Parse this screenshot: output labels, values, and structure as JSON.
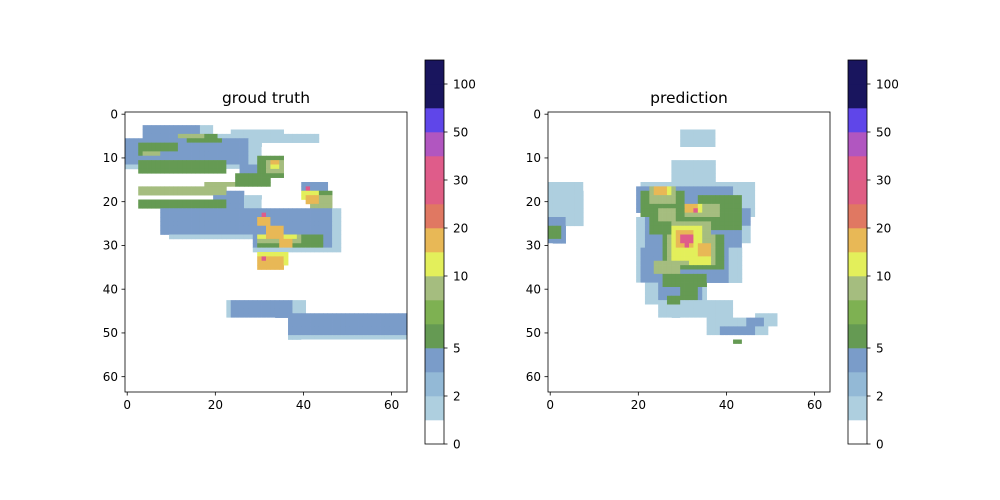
{
  "chart_data": [
    {
      "type": "heatmap",
      "title": "groud truth",
      "grid_size": [
        64,
        64
      ],
      "xlim": [
        -0.5,
        63.5
      ],
      "ylim": [
        63.5,
        -0.5
      ],
      "xticks": [
        0,
        20,
        40,
        60
      ],
      "yticks": [
        0,
        10,
        20,
        30,
        40,
        50,
        60
      ],
      "grid": false,
      "cells": {
        "0.5": [
          [
            4,
            3,
            24,
            3
          ],
          [
            4,
            3,
            16,
            6
          ],
          [
            24,
            44,
            10,
            6
          ],
          [
            20,
            42,
            14,
            6
          ],
          [
            20,
            38,
            24,
            5
          ],
          [
            42,
            48,
            21,
            5
          ],
          [
            40,
            52,
            40,
            3
          ],
          [
            45,
            50,
            51,
            3
          ],
          [
            54,
            58,
            51,
            1
          ],
          [
            37,
            46,
            47,
            2
          ],
          [
            10,
            20,
            25,
            6
          ],
          [
            4,
            8,
            30,
            6
          ],
          [
            47,
            49,
            58,
            2
          ]
        ],
        "1.5": [
          [
            4,
            3,
            16,
            6
          ],
          [
            12,
            7,
            14,
            6
          ],
          [
            29,
            22,
            20,
            10
          ],
          [
            23,
            19,
            8,
            6
          ],
          [
            23,
            43,
            18,
            4
          ],
          [
            10,
            22,
            34,
            7
          ],
          [
            2,
            8,
            5,
            3
          ],
          [
            5,
            9,
            9,
            1
          ],
          [
            0,
            6,
            31,
            7
          ],
          [
            37,
            46,
            44,
            6
          ],
          [
            14,
            5,
            30,
            2
          ],
          [
            24,
            4,
            12,
            2
          ],
          [
            30,
            34,
            3,
            1
          ]
        ],
        "3.5": [
          [
            4,
            3,
            13,
            5
          ],
          [
            12,
            7,
            12,
            5
          ],
          [
            29,
            22,
            18,
            9
          ],
          [
            20,
            18,
            7,
            4
          ],
          [
            24,
            43,
            14,
            4
          ],
          [
            8,
            22,
            30,
            6
          ],
          [
            2,
            8,
            4,
            2
          ],
          [
            5,
            9,
            8,
            1
          ],
          [
            0,
            6,
            28,
            6
          ],
          [
            37,
            46,
            42,
            5
          ],
          [
            26,
            12,
            9,
            3
          ],
          [
            40,
            16,
            6,
            4
          ]
        ],
        "5.5": [
          [
            3,
            8,
            5,
            2
          ],
          [
            3,
            7,
            9,
            2
          ],
          [
            12,
            5,
            9,
            1
          ],
          [
            3,
            11,
            20,
            3
          ],
          [
            3,
            20,
            20,
            2
          ],
          [
            30,
            28,
            15,
            3
          ],
          [
            40,
            18,
            7,
            2
          ],
          [
            14,
            6,
            8,
            1
          ],
          [
            25,
            14,
            8,
            3
          ],
          [
            30,
            10,
            6,
            5
          ],
          [
            32,
            11,
            4,
            3
          ]
        ],
        "8": [
          [
            4,
            9,
            4,
            1
          ],
          [
            12,
            5,
            6,
            1
          ],
          [
            3,
            17,
            20,
            2
          ],
          [
            10,
            18,
            10,
            1
          ],
          [
            30,
            28,
            10,
            2
          ],
          [
            42,
            19,
            5,
            3
          ],
          [
            32,
            11,
            4,
            3
          ],
          [
            18,
            16,
            7,
            1
          ]
        ],
        "12": [
          [
            30,
            28,
            9,
            1
          ],
          [
            30,
            32,
            7,
            3
          ],
          [
            40,
            18,
            4,
            2
          ],
          [
            33,
            11,
            2,
            2
          ]
        ],
        "17": [
          [
            30,
            33,
            6,
            3
          ],
          [
            32,
            26,
            4,
            3
          ],
          [
            41,
            19,
            3,
            2
          ],
          [
            35,
            29,
            3,
            2
          ],
          [
            33,
            11,
            2,
            1
          ],
          [
            30,
            24,
            3,
            2
          ]
        ],
        "35": [
          [
            31,
            23,
            1,
            1
          ],
          [
            31,
            33,
            1,
            1
          ],
          [
            41,
            17,
            1,
            1
          ]
        ]
      },
      "colorbar": {
        "boundaries": [
          0,
          1,
          2,
          3,
          5,
          6,
          7.5,
          10,
          15,
          20,
          25,
          30,
          40,
          50,
          70,
          100,
          150
        ],
        "colors": [
          "#ffffff",
          "#aecfdf",
          "#93b9d6",
          "#7a9cc9",
          "#659a53",
          "#7eb152",
          "#a5bd7f",
          "#e3ef5b",
          "#e8b856",
          "#e07862",
          "#df5e84",
          "#df5c8a",
          "#b156c0",
          "#5f46e9",
          "#19155e",
          "#19155e"
        ],
        "ticks": [
          0,
          2,
          5,
          10,
          20,
          30,
          50,
          100
        ],
        "tick_labels": [
          "0",
          "2",
          "5",
          "10",
          "20",
          "30",
          "50",
          "100"
        ]
      }
    },
    {
      "type": "heatmap",
      "title": "prediction",
      "grid_size": [
        64,
        64
      ],
      "xlim": [
        -0.5,
        63.5
      ],
      "ylim": [
        63.5,
        -0.5
      ],
      "xticks": [
        0,
        20,
        40,
        60
      ],
      "yticks": [
        0,
        10,
        20,
        30,
        40,
        50,
        60
      ],
      "grid": false,
      "cells": {
        "0.5": [
          [
            0,
            12,
            14,
            6
          ],
          [
            2,
            11,
            8,
            2
          ],
          [
            16,
            10,
            10,
            8
          ],
          [
            23,
            1,
            15,
            9
          ],
          [
            32,
            3,
            10,
            5
          ],
          [
            25,
            6,
            10,
            10
          ],
          [
            43,
            15,
            8,
            16
          ],
          [
            46,
            12,
            5,
            3
          ],
          [
            42,
            6,
            4,
            4
          ],
          [
            52,
            13,
            2,
            3
          ],
          [
            18,
            28,
            8,
            18
          ],
          [
            22,
            38,
            6,
            11
          ],
          [
            30,
            43,
            18,
            11
          ],
          [
            40,
            47,
            12,
            6
          ],
          [
            48,
            19,
            4,
            4
          ],
          [
            58,
            54,
            2,
            2
          ],
          [
            57,
            11,
            4,
            3
          ],
          [
            0,
            21,
            3,
            8
          ],
          [
            0,
            28,
            1,
            4
          ],
          [
            58,
            1,
            4,
            2
          ],
          [
            60,
            1,
            2,
            3
          ]
        ],
        "1.5": [
          [
            0,
            16,
            8,
            10
          ],
          [
            0,
            20,
            7,
            6
          ],
          [
            21,
            16,
            26,
            8
          ],
          [
            20,
            24,
            26,
            6
          ],
          [
            20,
            30,
            24,
            9
          ],
          [
            22,
            39,
            14,
            5
          ],
          [
            25,
            44,
            12,
            3
          ],
          [
            30,
            4,
            8,
            4
          ],
          [
            28,
            11,
            10,
            5
          ],
          [
            42,
            18,
            4,
            4
          ],
          [
            36,
            47,
            14,
            4
          ],
          [
            34,
            43,
            8,
            4
          ],
          [
            47,
            46,
            5,
            3
          ]
        ],
        "3.5": [
          [
            20,
            17,
            22,
            6
          ],
          [
            22,
            23,
            22,
            8
          ],
          [
            21,
            31,
            20,
            8
          ],
          [
            25,
            39,
            10,
            4
          ],
          [
            0,
            24,
            4,
            6
          ],
          [
            42,
            22,
            4,
            4
          ],
          [
            39,
            49,
            8,
            2
          ],
          [
            45,
            47,
            4,
            2
          ]
        ],
        "5.5": [
          [
            21,
            18,
            10,
            6
          ],
          [
            34,
            19,
            10,
            8
          ],
          [
            23,
            24,
            14,
            4
          ],
          [
            26,
            28,
            14,
            8
          ],
          [
            26,
            37,
            10,
            3
          ],
          [
            30,
            40,
            4,
            3
          ],
          [
            27,
            42,
            3,
            2
          ],
          [
            0,
            26,
            3,
            3
          ],
          [
            42,
            52,
            2,
            1
          ]
        ],
        "8": [
          [
            23,
            17,
            6,
            4
          ],
          [
            25,
            22,
            4,
            3
          ],
          [
            31,
            21,
            8,
            3
          ],
          [
            28,
            25,
            9,
            3
          ],
          [
            27,
            28,
            11,
            7
          ],
          [
            24,
            34,
            6,
            3
          ]
        ],
        "12": [
          [
            25,
            17,
            3,
            2
          ],
          [
            32,
            21,
            3,
            2
          ],
          [
            28,
            26,
            7,
            8
          ],
          [
            32,
            33,
            5,
            2
          ]
        ],
        "17": [
          [
            24,
            17,
            3,
            2
          ],
          [
            31,
            21,
            3,
            2
          ],
          [
            29,
            27,
            4,
            4
          ],
          [
            34,
            30,
            3,
            3
          ]
        ],
        "35": [
          [
            33,
            22,
            1,
            1
          ],
          [
            30,
            28,
            3,
            2
          ],
          [
            31,
            30,
            1,
            1
          ]
        ]
      },
      "colorbar": {
        "boundaries": [
          0,
          1,
          2,
          3,
          5,
          6,
          7.5,
          10,
          15,
          20,
          25,
          30,
          40,
          50,
          70,
          100,
          150
        ],
        "colors": [
          "#ffffff",
          "#aecfdf",
          "#93b9d6",
          "#7a9cc9",
          "#659a53",
          "#7eb152",
          "#a5bd7f",
          "#e3ef5b",
          "#e8b856",
          "#e07862",
          "#df5e84",
          "#df5c8a",
          "#b156c0",
          "#5f46e9",
          "#19155e",
          "#19155e"
        ],
        "ticks": [
          0,
          2,
          5,
          10,
          20,
          30,
          50,
          100
        ],
        "tick_labels": [
          "0",
          "2",
          "5",
          "10",
          "20",
          "30",
          "50",
          "100"
        ]
      }
    }
  ]
}
